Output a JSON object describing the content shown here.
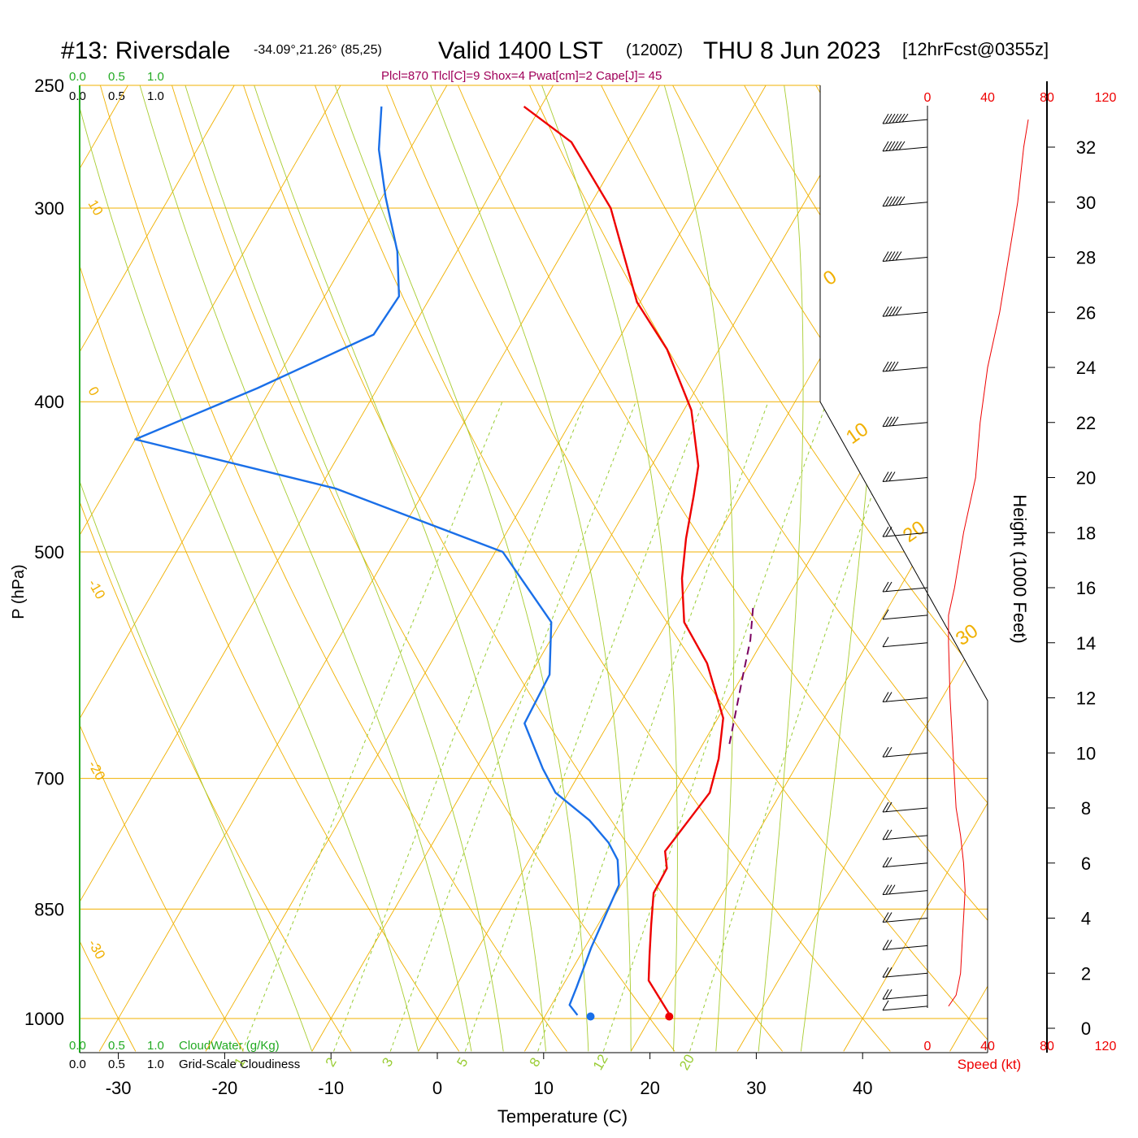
{
  "header": {
    "station": "#13: Riversdale",
    "coords": "-34.09°,21.26° (85,25)",
    "valid": "Valid 1400 LST",
    "utc": "(1200Z)",
    "date": "THU 8 Jun 2023",
    "forecast": "[12hrFcst@0355z]",
    "indices": "Plcl=870 Tlcl[C]=9 Shox=4 Pwat[cm]=2 Cape[J]= 45"
  },
  "labels": {
    "x_axis": "Temperature (C)",
    "y_axis": "P (hPa)",
    "height_axis": "Height (1000 Feet)",
    "speed_axis": "Speed (kt)",
    "cloud_water": "CloudWater (g/Kg)",
    "cloudiness": "Grid-Scale Cloudiness",
    "green_scale": [
      "0.0",
      "0.5",
      "1.0"
    ],
    "black_scale": [
      "0.0",
      "0.5",
      "1.0"
    ]
  },
  "colors": {
    "temperature": "#ee0000",
    "dewpoint": "#1a6fe8",
    "parcel": "#7a0060",
    "isotherm": "#f0b000",
    "dry_adiabat": "#f0b000",
    "moist_adiabat": "#a8cc30",
    "mixing_ratio": "#99cc33",
    "cloud_axis": "#22aa22",
    "indices_text": "#a0005a",
    "speed": "#ee0000"
  },
  "chart_data": {
    "type": "line",
    "subtype": "skew-T log-P sounding",
    "x_ticks": [
      "-30",
      "-20",
      "-10",
      "0",
      "10",
      "20",
      "30",
      "40"
    ],
    "pressure_ticks": [
      "250",
      "300",
      "400",
      "500",
      "700",
      "850",
      "1000"
    ],
    "xlim": [
      -33,
      36
    ],
    "plim": [
      1020,
      250
    ],
    "isotherm_labels": [
      "10",
      "0",
      "-10",
      "-20",
      "-30",
      "0",
      "10",
      "20",
      "30"
    ],
    "mixing_ratio_labels": [
      "1",
      "2",
      "3",
      "5",
      "8",
      "12",
      "20"
    ],
    "height_ticks": [
      "0",
      "2",
      "4",
      "6",
      "8",
      "10",
      "12",
      "14",
      "16",
      "18",
      "20",
      "22",
      "24",
      "26",
      "28",
      "30",
      "32"
    ],
    "speed_ticks": [
      "0",
      "40",
      "80",
      "120"
    ],
    "series": [
      {
        "name": "Temperature",
        "points": [
          [
            21.7,
            995
          ],
          [
            17.8,
            945
          ],
          [
            16.5,
            910
          ],
          [
            15.0,
            870
          ],
          [
            13.5,
            830
          ],
          [
            13.4,
            800
          ],
          [
            12.3,
            780
          ],
          [
            12.9,
            740
          ],
          [
            13.3,
            715
          ],
          [
            12.3,
            680
          ],
          [
            10.5,
            640
          ],
          [
            6.0,
            590
          ],
          [
            1.6,
            555
          ],
          [
            -1.0,
            520
          ],
          [
            -2.8,
            490
          ],
          [
            -4.4,
            460
          ],
          [
            -5.6,
            440
          ],
          [
            -9.3,
            405
          ],
          [
            -14.9,
            370
          ],
          [
            -20.3,
            345
          ],
          [
            -27.9,
            300
          ],
          [
            -35.2,
            272
          ],
          [
            -41.6,
            258
          ]
        ]
      },
      {
        "name": "Dewpoint",
        "points": [
          [
            13.0,
            995
          ],
          [
            11.7,
            980
          ],
          [
            11.4,
            955
          ],
          [
            10.6,
            900
          ],
          [
            10.2,
            860
          ],
          [
            9.8,
            820
          ],
          [
            8.3,
            790
          ],
          [
            6.5,
            770
          ],
          [
            3.5,
            745
          ],
          [
            -1.2,
            715
          ],
          [
            -3.7,
            690
          ],
          [
            -7.9,
            645
          ],
          [
            -8.2,
            600
          ],
          [
            -10.9,
            555
          ],
          [
            -19.3,
            500
          ],
          [
            -38.5,
            455
          ],
          [
            -60,
            423
          ],
          [
            -51.3,
            392
          ],
          [
            -43.3,
            362
          ],
          [
            -43.0,
            342
          ],
          [
            -45.6,
            320
          ],
          [
            -49.7,
            295
          ],
          [
            -52.9,
            275
          ],
          [
            -55.0,
            258
          ]
        ]
      },
      {
        "name": "Parcel",
        "points": [
          [
            12.5,
            665
          ],
          [
            10.0,
            600
          ],
          [
            8.8,
            570
          ],
          [
            7.1,
            540
          ]
        ]
      }
    ],
    "surface_points": [
      {
        "name": "surface temperature",
        "t": 21.7,
        "p": 997
      },
      {
        "name": "surface dewpoint",
        "t": 14.3,
        "p": 997
      }
    ],
    "wind_speed_kt": [
      [
        14,
        0.8
      ],
      [
        19,
        1.2
      ],
      [
        22,
        2
      ],
      [
        23,
        3
      ],
      [
        24,
        4
      ],
      [
        25,
        5
      ],
      [
        24,
        6
      ],
      [
        22,
        7
      ],
      [
        19,
        8
      ],
      [
        17,
        10
      ],
      [
        15,
        12
      ],
      [
        14,
        14
      ],
      [
        14,
        15
      ],
      [
        18,
        16
      ],
      [
        24,
        18
      ],
      [
        32,
        20
      ],
      [
        35,
        22
      ],
      [
        40,
        24
      ],
      [
        48,
        26
      ],
      [
        54,
        28
      ],
      [
        60,
        30
      ],
      [
        64,
        32
      ],
      [
        67,
        33
      ]
    ]
  }
}
